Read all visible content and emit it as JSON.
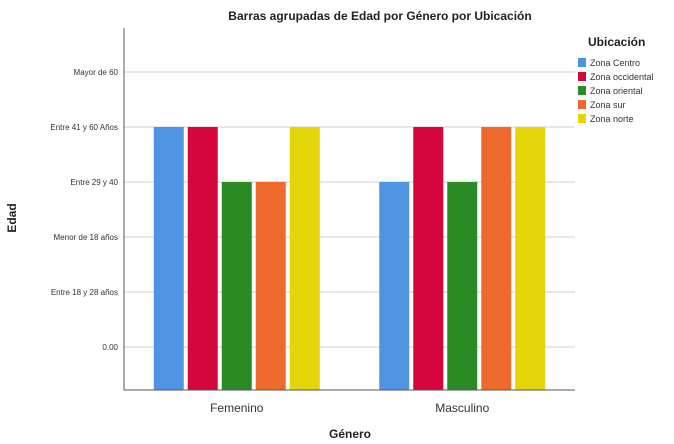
{
  "chart_data": {
    "type": "bar",
    "title": "Barras agrupadas de Edad por Género por Ubicación",
    "xlabel": "Género",
    "ylabel": "Edad",
    "categories": [
      "Femenino",
      "Masculino"
    ],
    "y_tick_labels": [
      "0.00",
      "Entre 18 y 28 años",
      "Menor de 18 años",
      "Entre 29 y 40",
      "Entre 41 y 60 Años",
      "Mayor de 60"
    ],
    "ylim": [
      0,
      5
    ],
    "grid": true,
    "legend_title": "Ubicación",
    "legend_position": "right",
    "series": [
      {
        "name": "Zona Centro",
        "color": "#4F94E3",
        "values": [
          4,
          3
        ]
      },
      {
        "name": "Zona occidental",
        "color": "#D4063B",
        "values": [
          4,
          4
        ]
      },
      {
        "name": "Zona oriental",
        "color": "#2A8A23",
        "values": [
          3,
          3
        ]
      },
      {
        "name": "Zona sur",
        "color": "#EE6A2C",
        "values": [
          3,
          4
        ]
      },
      {
        "name": "Zona norte",
        "color": "#E3D509",
        "values": [
          4,
          4
        ]
      }
    ]
  }
}
